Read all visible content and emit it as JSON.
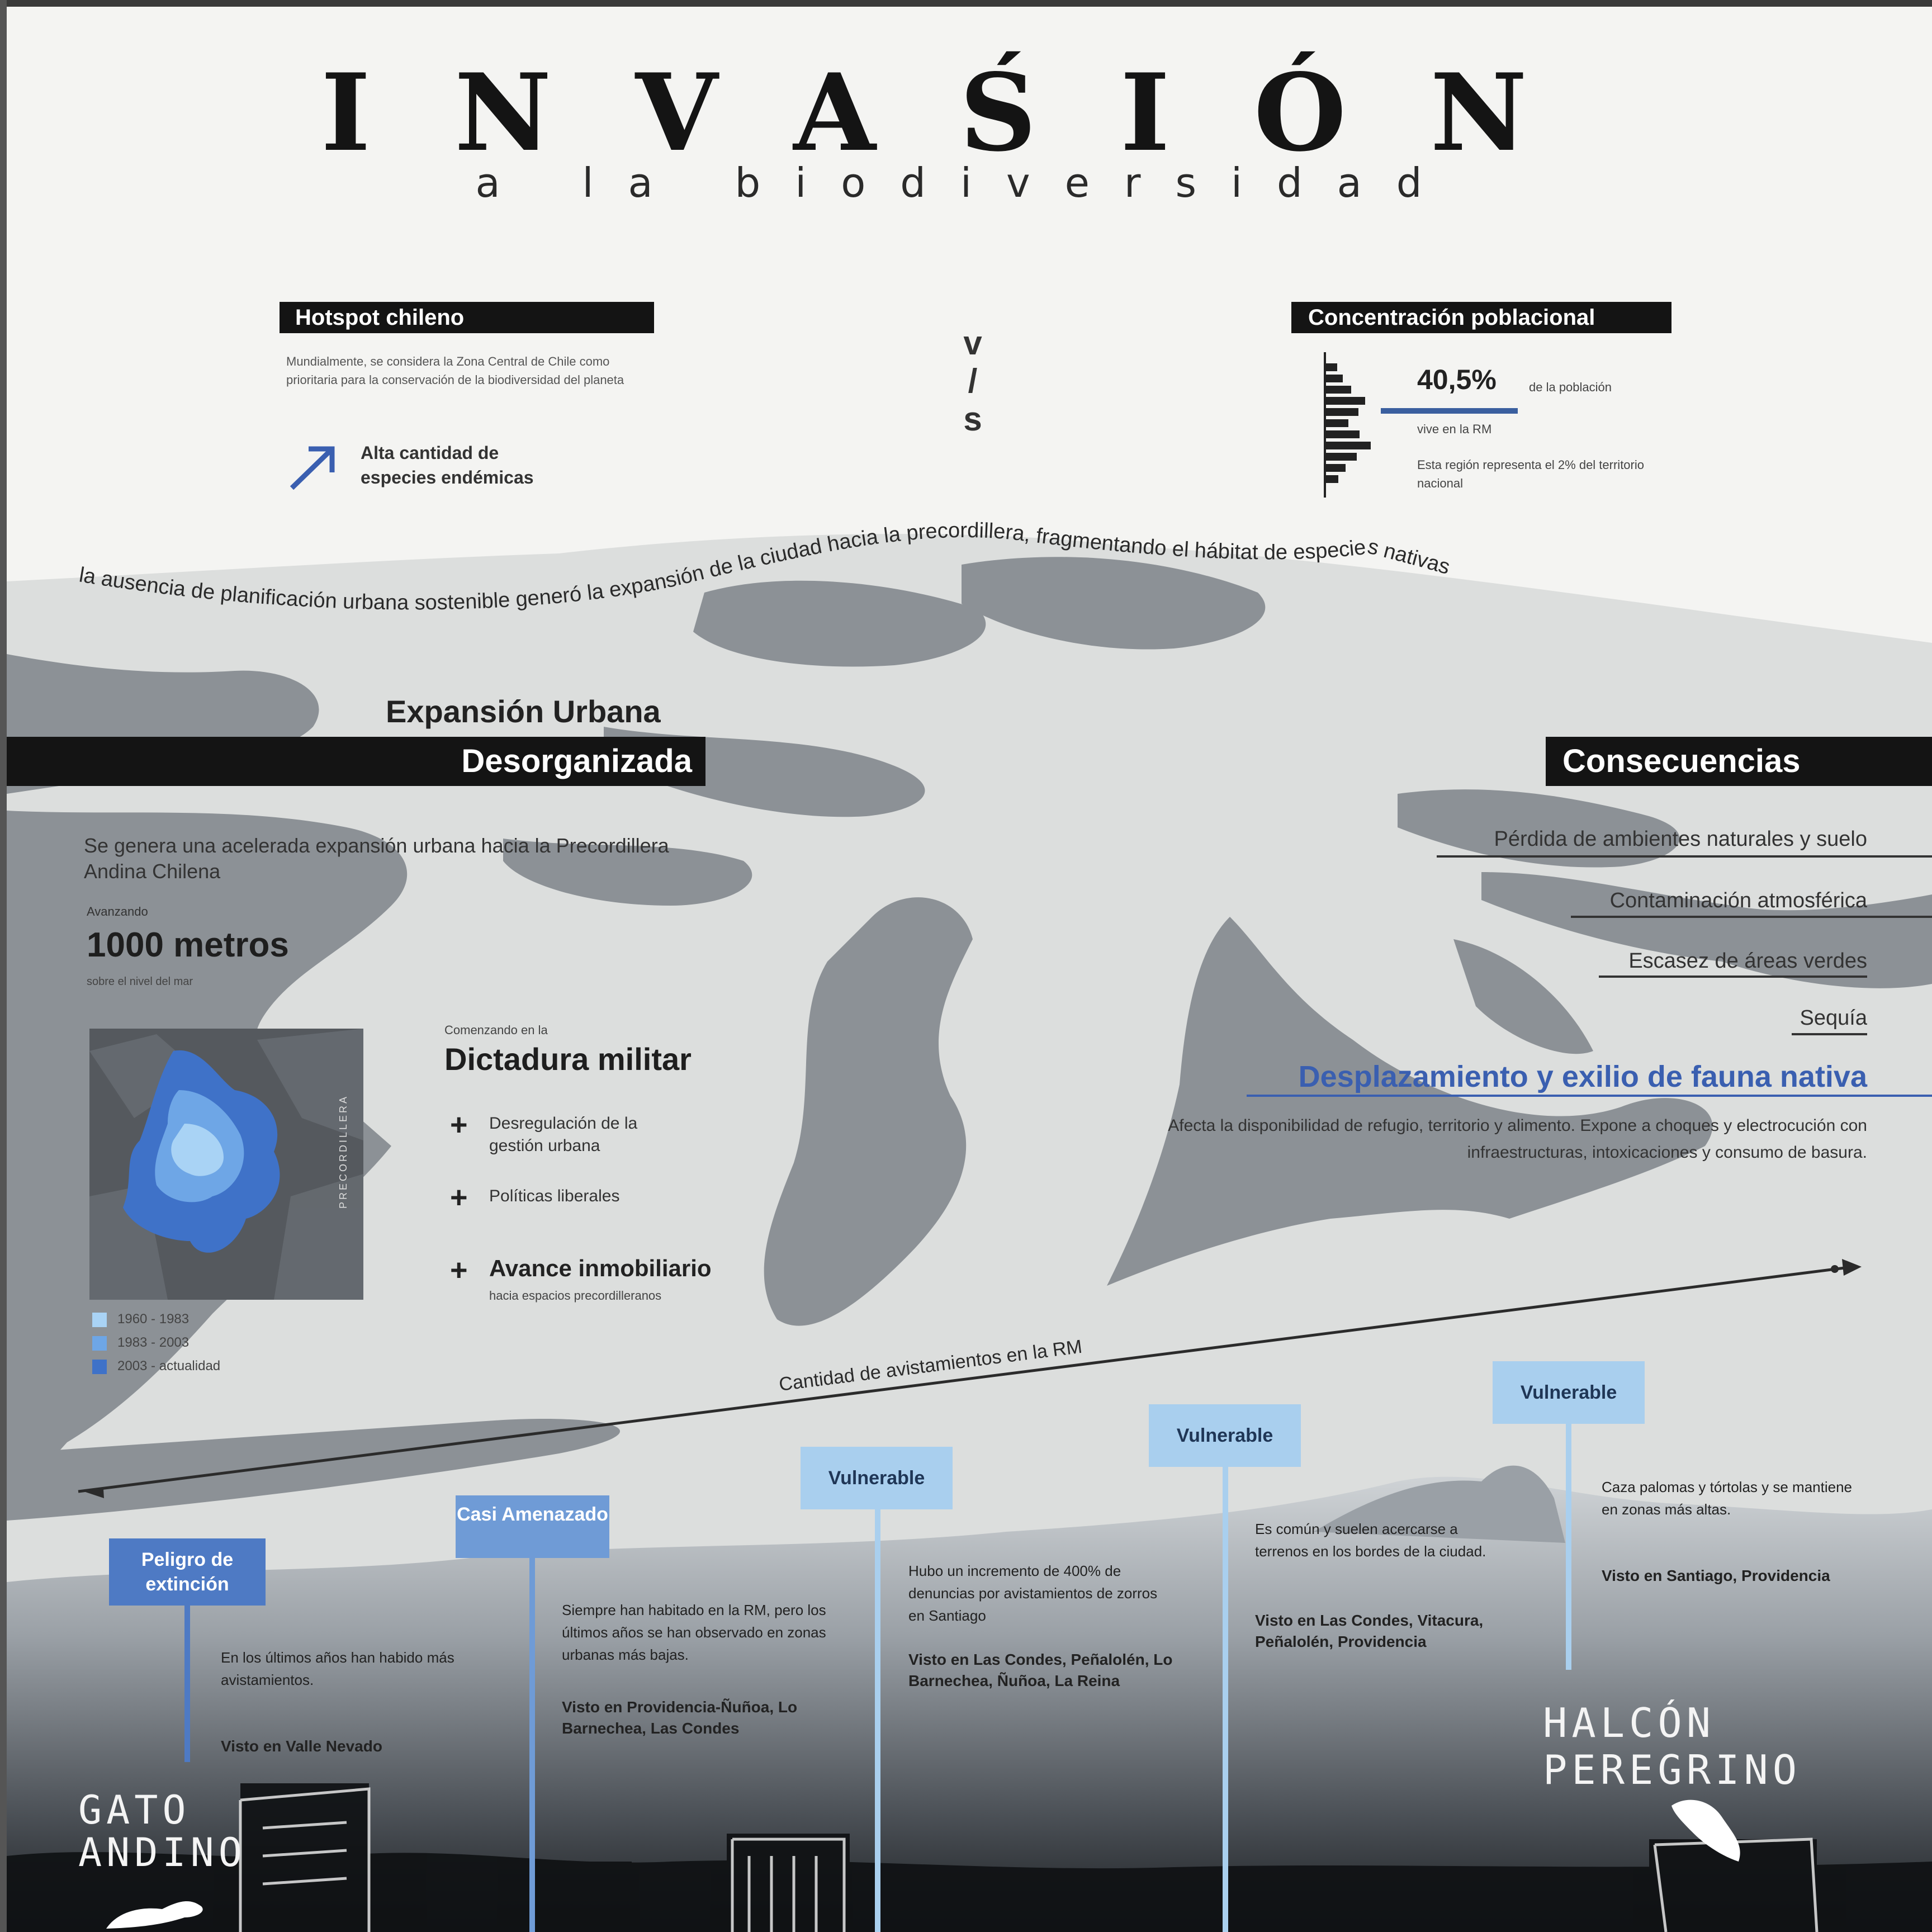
{
  "header": {
    "title": "INVAŚIÓN",
    "subtitle": "a la biodiversidad"
  },
  "hotspot": {
    "label": "Hotspot chileno",
    "text": "Mundialmente, se considera la Zona Central de Chile como prioritaria para la conservación de la biodiversidad del planeta",
    "highlight": "Alta cantidad de especies endémicas"
  },
  "vs": [
    "v",
    "/",
    "s"
  ],
  "concentration": {
    "label": "Concentración poblacional",
    "percent": "40,5%",
    "percent_note": "de la población",
    "location": "vive en la RM",
    "text": "Esta región representa el 2% del territorio nacional",
    "accent_color": "#3a5f9f"
  },
  "curved_text": "la ausencia de planificación urbana sostenible generó la expansión de la ciudad hacia la precordillera, fragmentando el hábitat de especies nativas",
  "urban": {
    "title_line1": "Expansión Urbana",
    "title_line2": "Desorganizada",
    "desc": "Se genera una acelerada expansión urbana hacia la Precordillera Andina Chilena",
    "avance_label": "Avanzando",
    "avance_value": "1000 metros",
    "avance_sub": "sobre el nivel del mar",
    "map_side_label": "PRECORDILLERA",
    "legend": [
      {
        "label": "1960 - 1983",
        "color": "#a9d3f5"
      },
      {
        "label": "1983 - 2003",
        "color": "#6ea6e6"
      },
      {
        "label": "2003 - actualidad",
        "color": "#3f72c8"
      }
    ]
  },
  "dictatorship": {
    "kicker": "Comenzando en la",
    "title": "Dictadura militar",
    "items": [
      "Desregulación de la gestión urbana",
      "Políticas liberales",
      "Avance inmobiliario"
    ],
    "item3_sub": "hacia espacios precordilleranos"
  },
  "consequences": {
    "title": "Consecuencias",
    "items": [
      "Pérdida de ambientes naturales y suelo",
      "Contaminación atmosférica",
      "Escasez de áreas verdes",
      "Sequía"
    ],
    "highlight": "Desplazamiento y exilio de fauna nativa",
    "highlight_text": "Afecta la disponibilidad de refugio, territorio y alimento. Expone a choques y electrocución con infraestructuras, intoxicaciones y consumo de basura.",
    "highlight_color": "#3a5fb0"
  },
  "axis": {
    "label": "Cantidad de avistamientos en la RM"
  },
  "species": [
    {
      "status": "Peligro de extinción",
      "text": "En los últimos años han habido más avistamientos.",
      "seen": "Visto en Valle Nevado",
      "name_line1": "GATO",
      "name_line2": "ANDINO",
      "tag_color": "#4e7ac4"
    },
    {
      "status": "Casi Amenazado",
      "text": "Siempre han habitado en la RM, pero los últimos años se han observado en zonas urbanas más bajas.",
      "seen": "Visto en Providencia-Ñuñoa, Lo Barnechea, Las Condes",
      "tag_color": "#6f9bd6"
    },
    {
      "status": "Vulnerable",
      "text": "Hubo un incremento de 400% de denuncias por avistamientos de zorros en Santiago",
      "seen": "Visto en Las Condes, Peñalolén, Lo Barnechea, Ñuñoa, La Reina",
      "tag_color": "#a9cfee"
    },
    {
      "status": "Vulnerable",
      "text": "Es común y suelen acercarse a terrenos en los bordes de la ciudad.",
      "seen": "Visto en Las Condes, Vitacura, Peñalolén, Providencia",
      "tag_color": "#a9cfee"
    },
    {
      "status": "Vulnerable",
      "text": "Caza palomas y tórtolas y se mantiene en zonas más altas.",
      "seen": "Visto en Santiago, Providencia",
      "name_line1": "HALCÓN",
      "name_line2": "PEREGRINO",
      "tag_color": "#a9cfee"
    }
  ],
  "colors": {
    "ink": "#141414",
    "mountain_gray": "#8c9196",
    "paper_gray": "#dcdedd",
    "accent_blue": "#3a5fb0"
  }
}
